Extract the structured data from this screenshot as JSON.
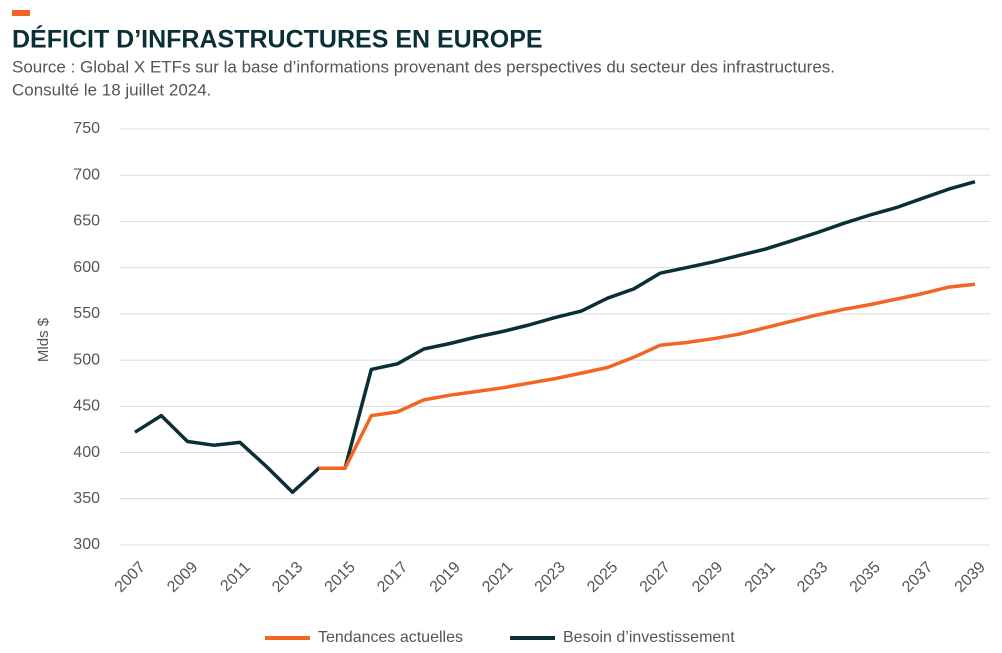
{
  "chart_data": {
    "type": "line",
    "title": "DÉFICIT D’INFRASTRUCTURES EN EUROPE",
    "subtitle": [
      "Source : Global X ETFs sur la base d’informations provenant des perspectives du secteur des infrastructures.",
      "Consulté le 18 juillet 2024."
    ],
    "y_label": "Mlds $",
    "x": [
      2007,
      2008,
      2009,
      2010,
      2011,
      2012,
      2013,
      2014,
      2015,
      2016,
      2017,
      2018,
      2019,
      2020,
      2021,
      2022,
      2023,
      2024,
      2025,
      2026,
      2027,
      2028,
      2029,
      2030,
      2031,
      2032,
      2033,
      2034,
      2035,
      2036,
      2037,
      2038,
      2039
    ],
    "series": [
      {
        "name": "Tendances actuelles",
        "color": "#f26522",
        "values": [
          null,
          null,
          null,
          null,
          null,
          null,
          null,
          383,
          383,
          440,
          444,
          457,
          462,
          466,
          470,
          475,
          480,
          486,
          492,
          503,
          516,
          519,
          523,
          528,
          535,
          542,
          549,
          555,
          560,
          566,
          572,
          579,
          582
        ]
      },
      {
        "name": "Besoin d’investissement",
        "color": "#0b2f36",
        "values": [
          422,
          440,
          412,
          408,
          411,
          385,
          357,
          383,
          383,
          490,
          496,
          512,
          518,
          525,
          531,
          538,
          546,
          553,
          567,
          577,
          594,
          600,
          606,
          613,
          620,
          629,
          638,
          648,
          657,
          665,
          675,
          685,
          693
        ]
      }
    ],
    "xlim": [
      2007,
      2039
    ],
    "xticks": [
      2007,
      2009,
      2011,
      2013,
      2015,
      2017,
      2019,
      2021,
      2023,
      2025,
      2027,
      2029,
      2031,
      2033,
      2035,
      2037,
      2039
    ],
    "ylim": [
      300,
      750
    ],
    "yticks": [
      300,
      350,
      400,
      450,
      500,
      550,
      600,
      650,
      700,
      750
    ],
    "grid": true,
    "legend": "bottom"
  }
}
